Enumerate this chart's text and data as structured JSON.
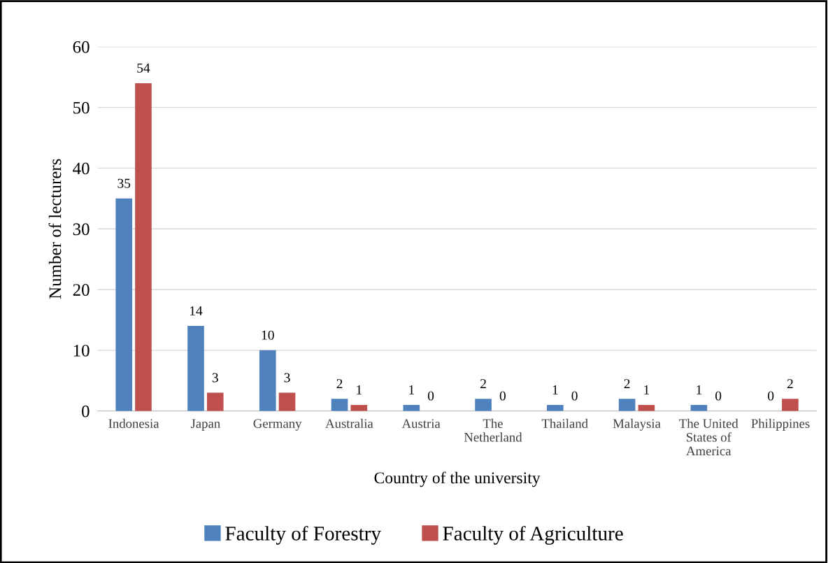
{
  "chart_data": {
    "type": "bar",
    "xlabel": "Country of the university",
    "ylabel": "Number of lecturers",
    "categories": [
      "Indonesia",
      "Japan",
      "Germany",
      "Australia",
      "Austria",
      "The\nNetherland",
      "Thailand",
      "Malaysia",
      "The United\nStates of\nAmerica",
      "Philippines"
    ],
    "series": [
      {
        "name": "Faculty of Forestry",
        "color": "#4f81bd",
        "values": [
          35,
          14,
          10,
          2,
          1,
          2,
          1,
          2,
          1,
          0
        ]
      },
      {
        "name": "Faculty of Agriculture",
        "color": "#c0504d",
        "values": [
          54,
          3,
          3,
          1,
          0,
          0,
          0,
          1,
          0,
          2
        ]
      }
    ],
    "ylim": [
      0,
      60
    ],
    "yticks": [
      0,
      10,
      20,
      30,
      40,
      50,
      60
    ],
    "grid": "y",
    "legend": "bottom",
    "data_labels": true
  }
}
